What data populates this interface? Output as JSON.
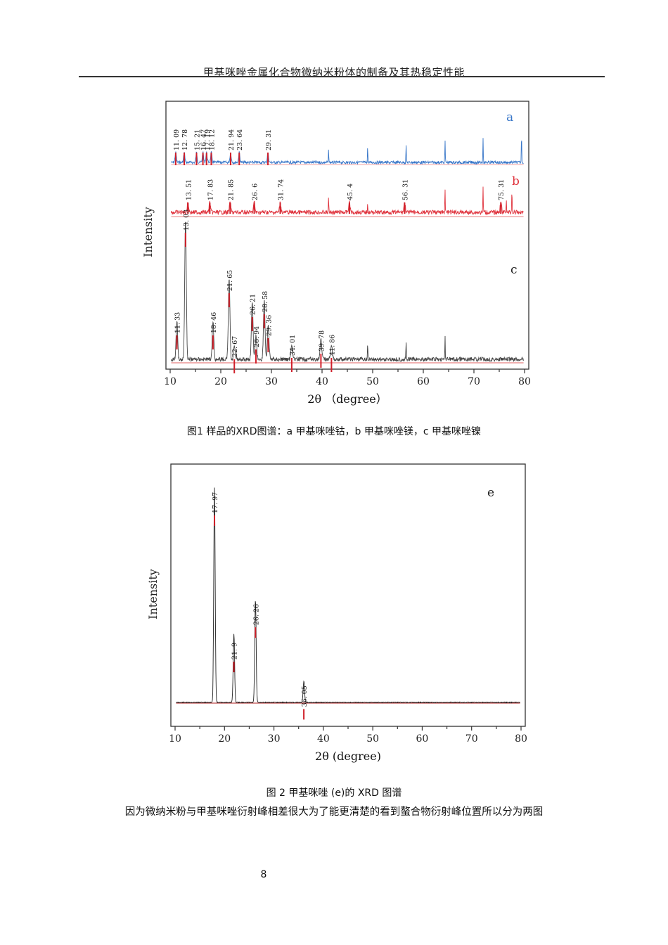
{
  "header": {
    "running_title": "甲基咪唑金属化合物微纳米粉体的制备及其热稳定性能"
  },
  "figure1": {
    "caption": "图1 样品的XRD图谱：a 甲基咪唑钴，b 甲基咪唑镁，c 甲基咪唑镍",
    "ylabel": "Intensity",
    "xlabel": "2θ （degree）"
  },
  "figure2": {
    "caption": "图 2 甲基咪唑 (e)的 XRD 图谱",
    "ylabel": "Intensity",
    "xlabel": "2θ (degree)"
  },
  "body_text": "因为微纳米粉与甲基咪唑衍射峰相差很大为了能更清楚的看到螯合物衍射峰位置所以分为两图",
  "page_number": "8",
  "colors": {
    "series_a": "#3a78c9",
    "series_b": "#e0353f",
    "series_c": "#444444",
    "series_e": "#222222",
    "marker": "#d0202a",
    "baseline": "#e06a6a"
  },
  "chart_data": [
    {
      "type": "line",
      "title": "",
      "xlabel": "2θ （degree）",
      "ylabel": "Intensity",
      "xlim": [
        10,
        80
      ],
      "xticks": [
        10,
        20,
        30,
        40,
        50,
        60,
        70,
        80
      ],
      "grid": false,
      "series": [
        {
          "name": "a",
          "description": "甲基咪唑钴",
          "color": "#3a78c9",
          "labeled_peaks": [
            11.09,
            12.78,
            15.21,
            16.47,
            17.19,
            18.12,
            21.94,
            23.64,
            29.31
          ],
          "unlabeled_sharp_peaks": [
            41.3,
            49.0,
            56.6,
            64.3,
            71.8,
            79.4
          ]
        },
        {
          "name": "b",
          "description": "甲基咪唑镁",
          "color": "#e0353f",
          "labeled_peaks": [
            13.51,
            17.83,
            21.85,
            26.6,
            31.74,
            45.4,
            56.31,
            75.31
          ],
          "unlabeled_sharp_peaks": [
            41.3,
            49.0,
            64.3,
            71.8,
            76.4,
            77.5
          ]
        },
        {
          "name": "c",
          "description": "甲基咪唑镍",
          "color": "#444444",
          "labeled_peaks": [
            11.33,
            13.03,
            18.46,
            21.65,
            22.67,
            26.21,
            26.94,
            28.58,
            29.36,
            34.01,
            39.78,
            41.86
          ],
          "peak_relative_heights": [
            0.27,
            1.0,
            0.27,
            0.57,
            0.1,
            0.4,
            0.17,
            0.42,
            0.25,
            0.11,
            0.14,
            0.11
          ],
          "unlabeled_sharp_peaks": [
            49.0,
            56.6,
            64.3
          ]
        }
      ]
    },
    {
      "type": "line",
      "title": "",
      "xlabel": "2θ (degree)",
      "ylabel": "Intensity",
      "xlim": [
        10,
        80
      ],
      "xticks": [
        10,
        20,
        30,
        40,
        50,
        60,
        70,
        80
      ],
      "grid": false,
      "series": [
        {
          "name": "e",
          "description": "甲基咪唑",
          "color": "#222222",
          "labeled_peaks": [
            17.97,
            21.9,
            26.26,
            36.05
          ],
          "peak_relative_heights": [
            1.0,
            0.32,
            0.48,
            0.1
          ]
        }
      ]
    }
  ]
}
